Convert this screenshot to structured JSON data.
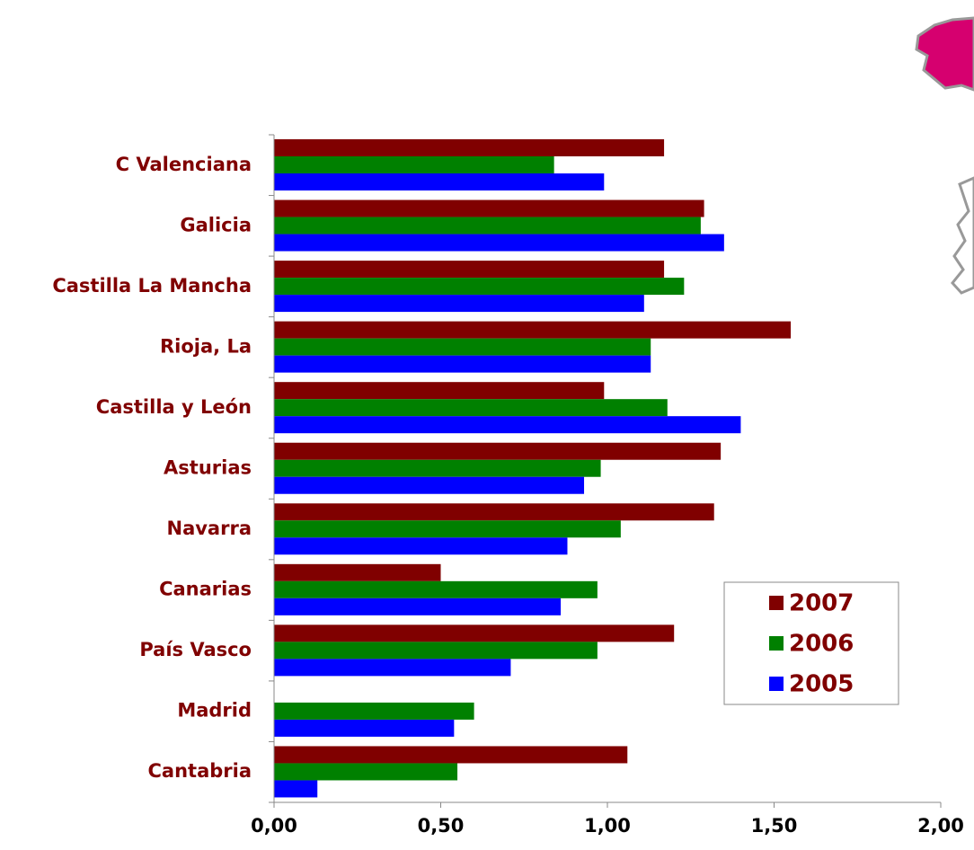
{
  "chart_data": {
    "type": "bar",
    "orientation": "horizontal",
    "categories": [
      "C Valenciana",
      "Galicia",
      "Castilla La Mancha",
      "Rioja, La",
      "Castilla y León",
      "Asturias",
      "Navarra",
      "Canarias",
      "País Vasco",
      "Madrid",
      "Cantabria"
    ],
    "series": [
      {
        "name": "2007",
        "color": "#800000",
        "values": [
          1.17,
          1.29,
          1.17,
          1.55,
          0.99,
          1.34,
          1.32,
          0.5,
          1.2,
          null,
          1.06
        ]
      },
      {
        "name": "2006",
        "color": "#008000",
        "values": [
          0.84,
          1.28,
          1.23,
          1.13,
          1.18,
          0.98,
          1.04,
          0.97,
          0.97,
          0.6,
          0.55
        ]
      },
      {
        "name": "2005",
        "color": "#0000ff",
        "values": [
          0.99,
          1.35,
          1.11,
          1.13,
          1.4,
          0.93,
          0.88,
          0.86,
          0.71,
          0.54,
          0.13
        ]
      }
    ],
    "xlim": [
      0,
      2
    ],
    "xticks": [
      {
        "value": 0,
        "label": "0,00"
      },
      {
        "value": 0.5,
        "label": "0,50"
      },
      {
        "value": 1,
        "label": "1,00"
      },
      {
        "value": 1.5,
        "label": "1,50"
      },
      {
        "value": 2,
        "label": "2,00"
      }
    ],
    "legend": "lower right"
  }
}
